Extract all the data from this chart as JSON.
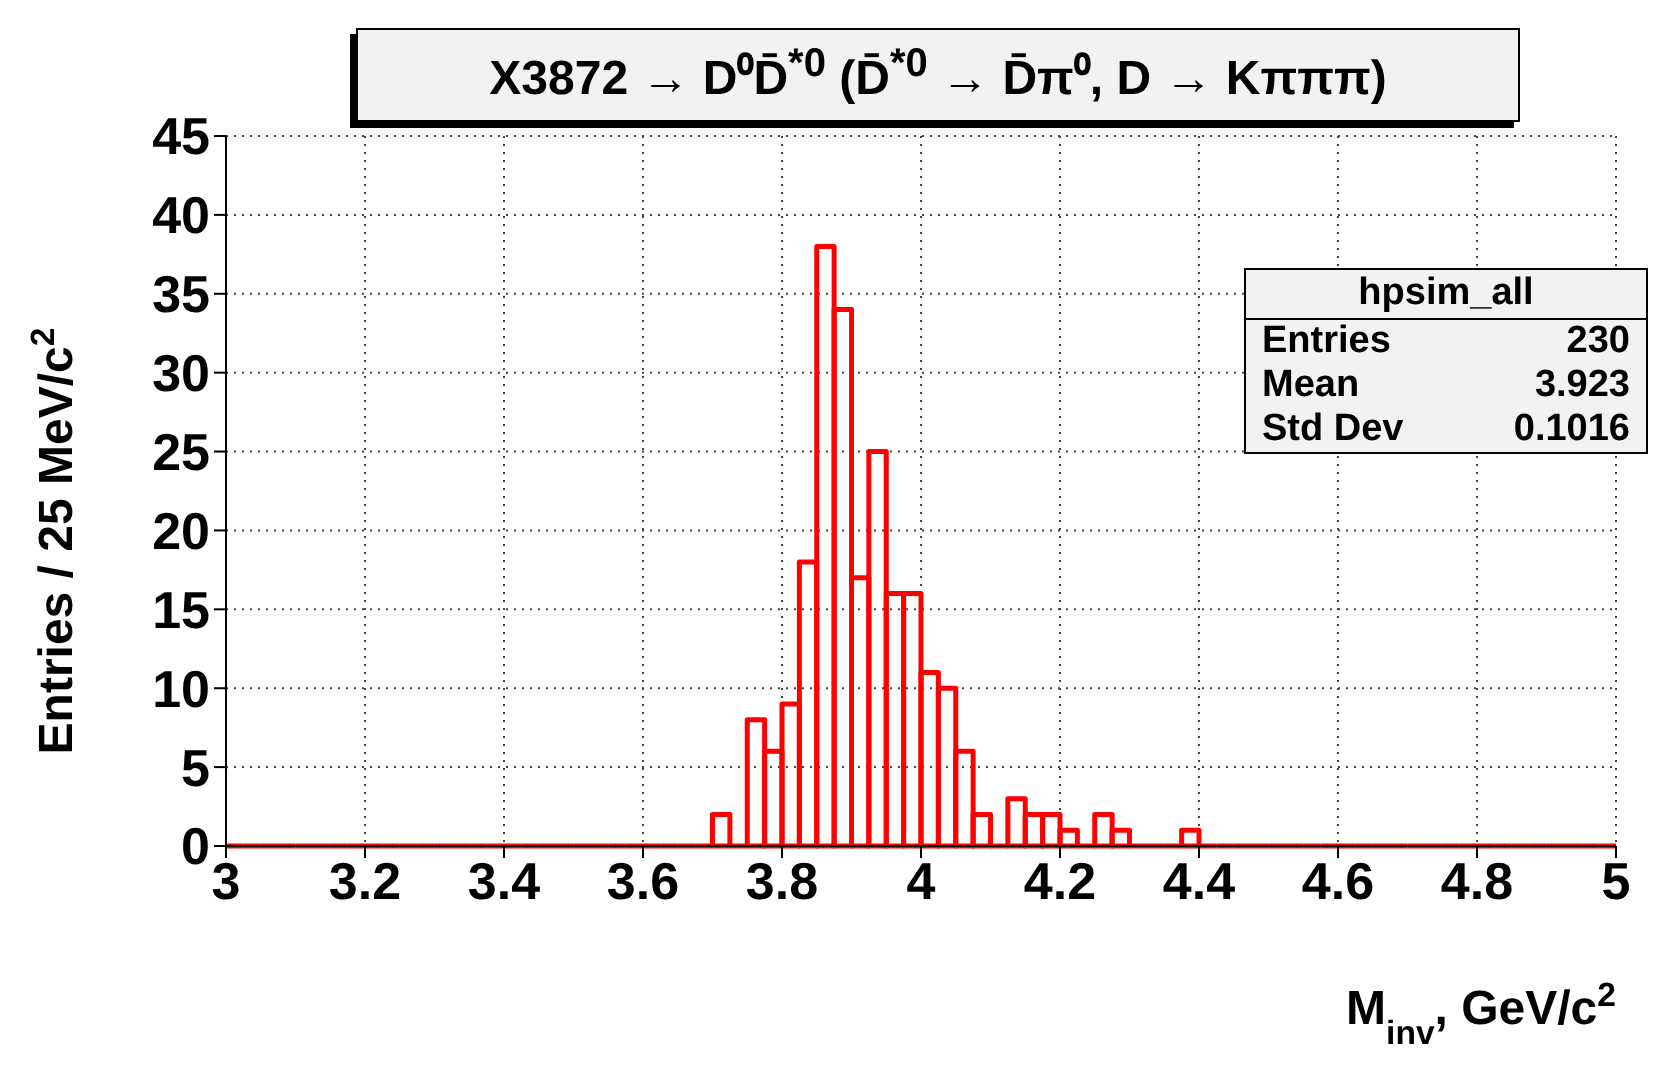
{
  "chart_data": {
    "type": "histogram",
    "title": "X3872 → D⁰D̄$^{*0}$ (D̄$^{*0}$ → D̄π⁰, D → Kπππ)",
    "xlabel": "M$_{inv}$, GeV/c$^{2}$",
    "ylabel": "Entries / 25 MeV/c$^{2}$",
    "annotations": [
      "hpsim_all",
      "Entries",
      "230",
      "Mean",
      "3.923",
      "Std Dev",
      "0.1016"
    ],
    "bins": [
      3,
      3.025,
      3.05,
      3.075,
      3.1,
      3.125,
      3.15,
      3.175,
      3.2,
      3.225,
      3.25,
      3.275,
      3.3,
      3.325,
      3.35,
      3.375,
      3.4,
      3.425,
      3.45,
      3.475,
      3.5,
      3.525,
      3.55,
      3.575,
      3.6,
      3.625,
      3.65,
      3.675,
      3.7,
      3.725,
      3.75,
      3.775,
      3.8,
      3.825,
      3.85,
      3.875,
      3.9,
      3.925,
      3.95,
      3.975,
      4,
      4.025,
      4.05,
      4.075,
      4.1,
      4.125,
      4.15,
      4.175,
      4.2,
      4.225,
      4.25,
      4.275,
      4.3,
      4.325,
      4.35,
      4.375,
      4.4,
      4.425,
      4.45,
      4.475,
      4.5,
      4.525,
      4.55,
      4.575,
      4.6,
      4.625,
      4.65,
      4.675,
      4.7,
      4.725,
      4.75,
      4.775,
      4.8,
      4.825,
      4.85,
      4.875,
      4.9,
      4.925,
      4.95,
      4.975,
      5
    ],
    "values": [
      0,
      0,
      0,
      0,
      0,
      0,
      0,
      0,
      0,
      0,
      0,
      0,
      0,
      0,
      0,
      0,
      0,
      0,
      0,
      0,
      0,
      0,
      0,
      0,
      0,
      0,
      0,
      0,
      2,
      0,
      8,
      6,
      9,
      18,
      38,
      34,
      17,
      25,
      16,
      16,
      11,
      10,
      6,
      2,
      0,
      3,
      2,
      2,
      1,
      0,
      2,
      1,
      0,
      0,
      0,
      1,
      0,
      0,
      0,
      0,
      0,
      0,
      0,
      0,
      0,
      0,
      0,
      0,
      0,
      0,
      0,
      0,
      0,
      0,
      0,
      0,
      0,
      0,
      0,
      0
    ],
    "color": "#ff0000",
    "xlim": [
      3,
      5
    ],
    "ylim": [
      0,
      45
    ],
    "xticks": [
      3,
      3.2,
      3.4,
      3.6,
      3.8,
      4,
      4.2,
      4.4,
      4.6,
      4.8,
      5
    ],
    "yticks": [
      0,
      5,
      10,
      15,
      20,
      25,
      30,
      35,
      40,
      45
    ],
    "grid": true
  }
}
